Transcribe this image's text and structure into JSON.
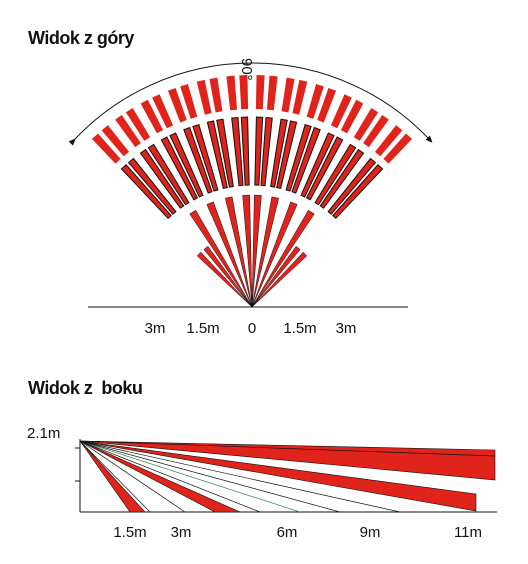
{
  "top_view": {
    "title": "Widok z góry",
    "angle_label": "90°",
    "distance_labels": [
      "3m",
      "1.5m",
      "0",
      "1.5m",
      "3m"
    ]
  },
  "side_view": {
    "title": "Widok z  boku",
    "height_label": "2.1m",
    "distance_labels": [
      "1.5m",
      "3m",
      "6m",
      "9m",
      "11m"
    ]
  }
}
